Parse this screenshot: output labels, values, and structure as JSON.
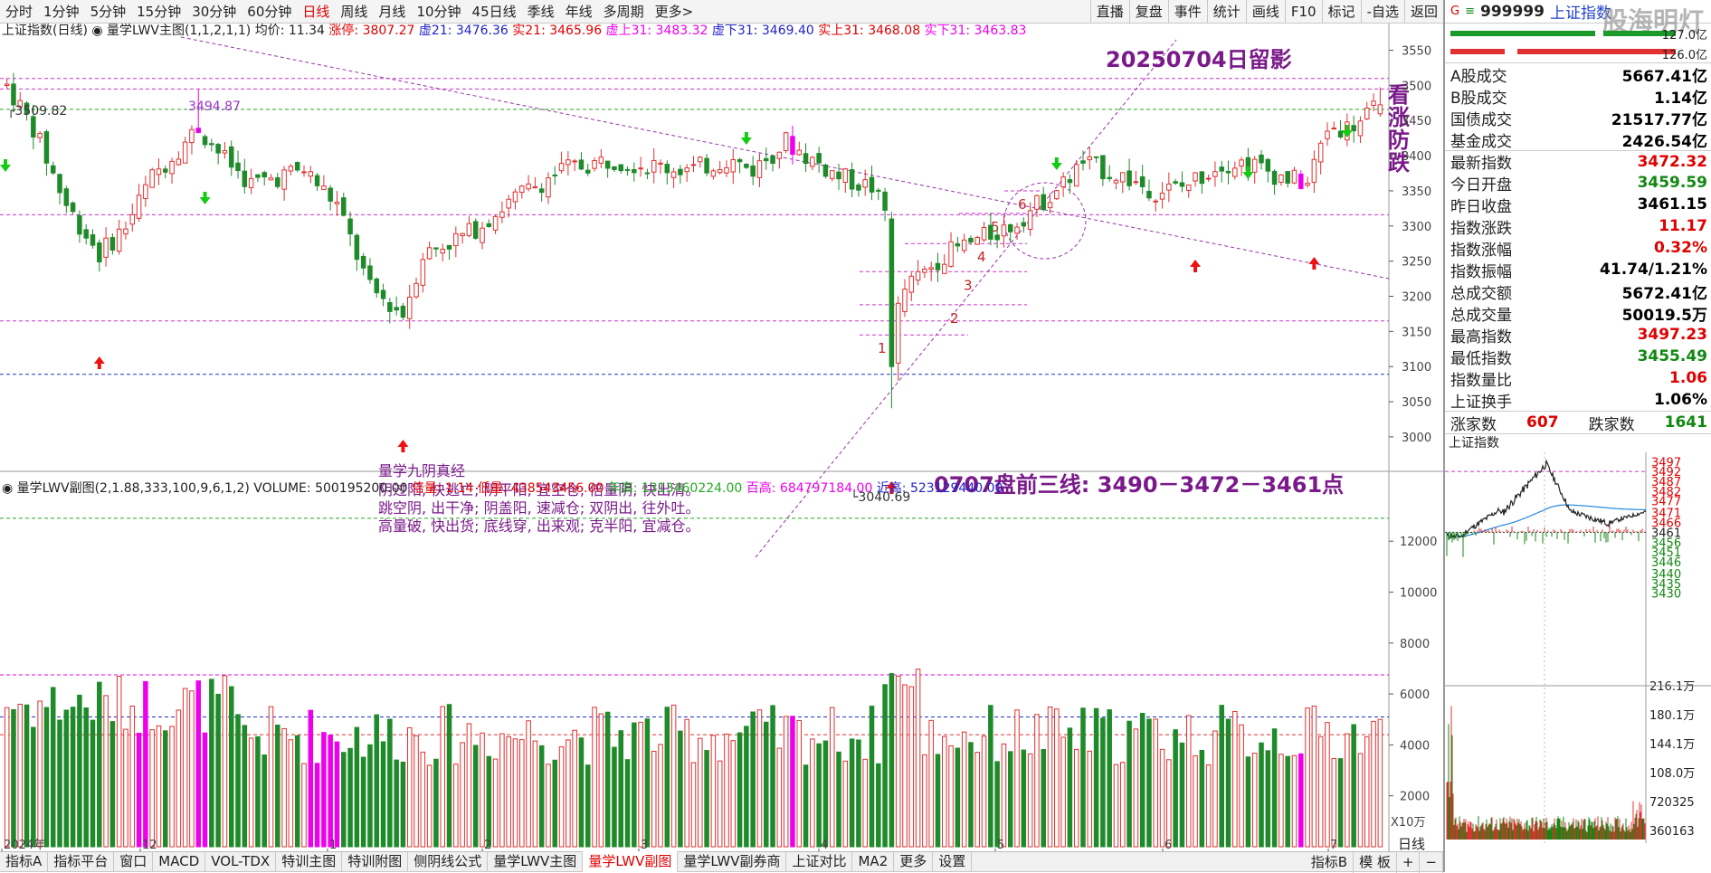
{
  "toolbar": {
    "periods": [
      "分时",
      "1分钟",
      "5分钟",
      "15分钟",
      "30分钟",
      "60分钟",
      "日线",
      "周线",
      "月线",
      "10分钟",
      "45日线",
      "季线",
      "年线",
      "多周期",
      "更多>"
    ],
    "active_period": "日线",
    "right": [
      "直播",
      "复盘",
      "事件",
      "统计",
      "画线",
      "F10",
      "标记",
      "-自选",
      "返回"
    ]
  },
  "main_header": {
    "title": "上证指数(日线)",
    "indicator": "量学LWV主图(1,1,2,1,1)",
    "avg": "均价: 11.34",
    "zt": "涨停: 3807.27",
    "x21": "虚21: 3476.36",
    "s21": "实21: 3465.96",
    "xs31": "虚上31: 3483.32",
    "xx31": "虚下31: 3469.40",
    "ss31": "实上31: 3468.08",
    "sx31": "实下31: 3463.83"
  },
  "annotations": {
    "title_note": "20250704日留影",
    "side_note": [
      "看",
      "涨",
      "防",
      "跌"
    ],
    "plan": "0707盘前三线: 3490－3472－3461点",
    "high_label": "3509.82",
    "peak_label": "3494.87",
    "low_label": "3040.69",
    "verse_title": "量学九阴真经",
    "verse": [
      "阴过阳, 快逃亡; 阴平阳, 宜空仓; 倍量阴, 快出清。",
      "跳空阴, 出干净; 阴盖阳, 速减仓; 双阴出, 往外吐。",
      "高量破, 快出货; 底线穿, 出来观; 克半阳, 宜减仓。"
    ],
    "steps": [
      "1",
      "2",
      "3",
      "4",
      "5",
      "6"
    ]
  },
  "vol_header": {
    "indicator": "量学LWV副图(2,1.88,333,100,9,6,1,2)",
    "volume": "VOLUME: 500195200.00",
    "bei": "倍量: 1.14",
    "di": "低量: 438543456.00",
    "nian": "年高: 1313460224.00",
    "bai": "百高: 684797184.00",
    "jin": "近高: 523129440.00",
    "unit": "X10万"
  },
  "bottom_tabs": [
    "指标A",
    "指标平台",
    "窗口",
    "MACD",
    "VOL-TDX",
    "特训主图",
    "特训附图",
    "侧阴线公式",
    "量学LWV主图",
    "量学LWV副图",
    "量学LWV副券商",
    "上证对比",
    "MA2",
    "更多",
    "设置"
  ],
  "bottom_active": "量学LWV副图",
  "bottom_right": [
    "指标B",
    "模 板",
    "+",
    "−"
  ],
  "side": {
    "code": "999999",
    "name": "上证指数",
    "watermark": "股海明灯",
    "top_vals": [
      "127.0亿",
      "126.0亿"
    ],
    "rows": [
      {
        "k": "A股成交",
        "v": "5667.41亿",
        "c": "#000"
      },
      {
        "k": "B股成交",
        "v": "1.14亿",
        "c": "#000"
      },
      {
        "k": "国债成交",
        "v": "21517.77亿",
        "c": "#000"
      },
      {
        "k": "基金成交",
        "v": "2426.54亿",
        "c": "#000"
      },
      {
        "k": "最新指数",
        "v": "3472.32",
        "c": "#e00000"
      },
      {
        "k": "今日开盘",
        "v": "3459.59",
        "c": "#118811"
      },
      {
        "k": "昨日收盘",
        "v": "3461.15",
        "c": "#000"
      },
      {
        "k": "指数涨跌",
        "v": "11.17",
        "c": "#e00000"
      },
      {
        "k": "指数涨幅",
        "v": "0.32%",
        "c": "#e00000"
      },
      {
        "k": "指数振幅",
        "v": "41.74/1.21%",
        "c": "#000"
      },
      {
        "k": "总成交额",
        "v": "5672.41亿",
        "c": "#000"
      },
      {
        "k": "总成交量",
        "v": "50019.5万",
        "c": "#000"
      },
      {
        "k": "最高指数",
        "v": "3497.23",
        "c": "#e00000"
      },
      {
        "k": "最低指数",
        "v": "3455.49",
        "c": "#118811"
      },
      {
        "k": "指数量比",
        "v": "1.06",
        "c": "#e00000"
      },
      {
        "k": "上证换手",
        "v": "1.06%",
        "c": "#000"
      }
    ],
    "up_label": "涨家数",
    "up": "607",
    "down_label": "跌家数",
    "down": "1641",
    "mini_title": "上证指数",
    "mini_ticks": [
      "3497",
      "3492",
      "3487",
      "3482",
      "3477",
      "3471",
      "3466",
      "3461",
      "3456",
      "3451",
      "3446",
      "3440",
      "3435",
      "3430"
    ],
    "mini_vol_ticks": [
      "216.1万",
      "180.1万",
      "144.1万",
      "108.0万",
      "720325",
      "360163"
    ]
  },
  "chart_data": {
    "type": "candlestick",
    "xlabel_ticks": [
      "2024年",
      "12",
      "1",
      "2",
      "3",
      "4",
      "5",
      "6",
      "7"
    ],
    "price_axis": [
      3550,
      3500,
      3450,
      3400,
      3350,
      3300,
      3250,
      3200,
      3150,
      3100,
      3050,
      3000
    ],
    "volume_axis": [
      12000,
      10000,
      8000,
      6000,
      4000,
      2000
    ],
    "ylim": [
      2960,
      3570
    ],
    "vol_ylim": [
      0,
      13500
    ],
    "levels": [
      3509.82,
      3494.87,
      3465.96,
      3316,
      3165,
      3089
    ],
    "key_points": {
      "high": 3509.82,
      "peak": 3494.87,
      "low": 3040.69
    },
    "plan_lines": [
      3490,
      3472,
      3461
    ],
    "data_note": "OHLC values are approximate readings of the plotted daily candles"
  }
}
